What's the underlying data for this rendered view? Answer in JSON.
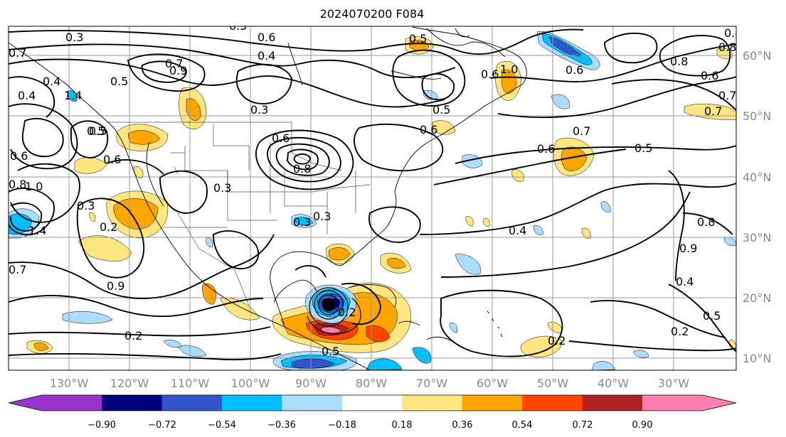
{
  "title": "2024070200 F084",
  "lon_labels": [
    "130°W",
    "120°W",
    "110°W",
    "100°W",
    "90°W",
    "80°W",
    "70°W",
    "60°W",
    "50°W",
    "40°W",
    "30°W"
  ],
  "lat_labels": [
    "60°N",
    "50°N",
    "40°N",
    "30°N",
    "20°N",
    "10°N"
  ],
  "colorbar": {
    "ticks": [
      "−0.90",
      "−0.72",
      "−0.54",
      "−0.36",
      "−0.18",
      "0.18",
      "0.36",
      "0.54",
      "0.72",
      "0.90"
    ],
    "colors": [
      "#9933cc",
      "#000080",
      "#3355cc",
      "#00bfff",
      "#aaddff",
      "#ffffff",
      "#ffe680",
      "#ffa500",
      "#ff4500",
      "#b22222",
      "#ff80b0"
    ]
  },
  "contour_labels": [
    "0.3",
    "0.6",
    "0.4",
    "0.5",
    "0.7",
    "0.9",
    "0.5",
    "0.4",
    "0.7",
    "0.5",
    "1.0",
    "0.2",
    "0.3",
    "1.4",
    "0.4",
    "0.6",
    "1.4",
    "0.8",
    "0.6",
    "0.5",
    "0.5",
    "0.6",
    "0.8",
    "0.3",
    "0.3",
    "0.6",
    "0.7",
    "0.6",
    "0.5",
    "0.6",
    "0.5",
    "0.2",
    "0.9",
    "0.3",
    "0.7",
    "0.4",
    "0.8",
    "0.2",
    "0.4",
    "0.7",
    "0.5",
    "0.2",
    "0.2",
    "0.5",
    "0.6",
    "0.8",
    "0.9",
    "0.8",
    "0.7",
    "0.4",
    "1.0",
    "0.6",
    "0.3"
  ],
  "colors": {
    "contour": "#000000",
    "grid": "#999999",
    "coast": "#000000",
    "axis_label": "#888888"
  }
}
